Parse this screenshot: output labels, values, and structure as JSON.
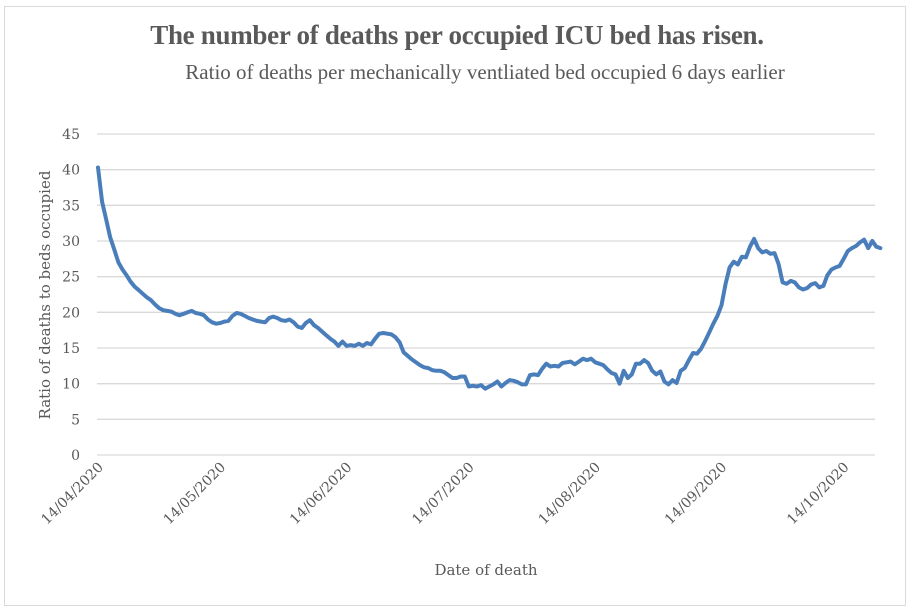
{
  "chart_data": {
    "type": "line",
    "title": "The number of deaths per occupied ICU bed has risen.",
    "subtitle": "Ratio of deaths per mechanically ventliated bed occupied 6 days earlier",
    "xlabel": "Date of death",
    "ylabel": "Ratio of deaths to beds occupied",
    "ylim": [
      0,
      45
    ],
    "yticks": [
      0,
      5,
      10,
      15,
      20,
      25,
      30,
      35,
      40,
      45
    ],
    "x_start": "14/04/2020",
    "x_step": "1 day",
    "xtick_labels": [
      "14/04/2020",
      "14/05/2020",
      "14/06/2020",
      "14/07/2020",
      "14/08/2020",
      "14/09/2020",
      "14/10/2020"
    ],
    "xtick_day_offsets": [
      0,
      30,
      61,
      91,
      122,
      153,
      183
    ],
    "grid": true,
    "legend": "none",
    "series": [
      {
        "name": "Ratio of deaths to beds occupied",
        "color": "#4a7ebb",
        "values": [
          40.3,
          35.5,
          33,
          30.5,
          28.8,
          27,
          26,
          25.2,
          24.3,
          23.6,
          23.1,
          22.6,
          22.1,
          21.7,
          21.1,
          20.6,
          20.3,
          20.2,
          20.1,
          19.8,
          19.6,
          19.8,
          20.0,
          20.2,
          19.9,
          19.8,
          19.6,
          19.0,
          18.6,
          18.4,
          18.5,
          18.7,
          18.8,
          19.5,
          19.9,
          19.8,
          19.5,
          19.2,
          19.0,
          18.8,
          18.7,
          18.6,
          19.2,
          19.4,
          19.2,
          18.9,
          18.8,
          19.0,
          18.6,
          18.0,
          17.8,
          18.5,
          18.9,
          18.2,
          17.8,
          17.3,
          16.8,
          16.3,
          15.9,
          15.3,
          15.9,
          15.3,
          15.4,
          15.3,
          15.6,
          15.3,
          15.7,
          15.5,
          16.3,
          17.0,
          17.1,
          17.0,
          16.9,
          16.5,
          15.8,
          14.4,
          13.9,
          13.4,
          13.0,
          12.6,
          12.3,
          12.2,
          11.9,
          11.8,
          11.8,
          11.6,
          11.2,
          10.8,
          10.8,
          11.0,
          11.0,
          9.6,
          9.7,
          9.6,
          9.8,
          9.3,
          9.6,
          9.9,
          10.3,
          9.6,
          10.1,
          10.5,
          10.4,
          10.2,
          9.9,
          9.9,
          11.2,
          11.3,
          11.2,
          12.1,
          12.8,
          12.4,
          12.5,
          12.4,
          12.9,
          13.0,
          13.1,
          12.7,
          13.1,
          13.5,
          13.3,
          13.5,
          13.0,
          12.8,
          12.6,
          12.0,
          11.5,
          11.3,
          10.0,
          11.8,
          10.8,
          11.3,
          12.8,
          12.8,
          13.3,
          12.9,
          11.8,
          11.3,
          11.7,
          10.3,
          9.9,
          10.5,
          10.1,
          11.8,
          12.2,
          13.3,
          14.3,
          14.2,
          14.9,
          16.0,
          17.2,
          18.4,
          19.5,
          21.0,
          24.0,
          26.3,
          27.1,
          26.7,
          27.8,
          27.7,
          29.2,
          30.3,
          29.0,
          28.4,
          28.6,
          28.2,
          28.3,
          26.8,
          24.2,
          24.0,
          24.4,
          24.2,
          23.5,
          23.2,
          23.4,
          23.9,
          24.1,
          23.5,
          23.7,
          25.2,
          26.0,
          26.3,
          26.5,
          27.5,
          28.6,
          29.0,
          29.3,
          29.8,
          30.2,
          29.0,
          30.0,
          29.2,
          29.0
        ]
      }
    ]
  }
}
